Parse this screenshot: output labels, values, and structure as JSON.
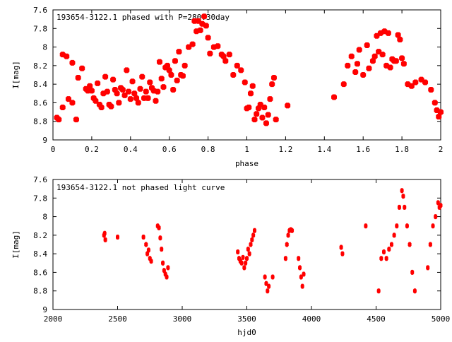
{
  "chart_data": [
    {
      "type": "scatter",
      "title": "193654-3122.1 phased with P=280.30day",
      "xlabel": "phase",
      "ylabel": "I[mag]",
      "xlim": [
        0,
        2
      ],
      "ylim": [
        9,
        7.6
      ],
      "y_inverted": true,
      "grid": false,
      "x_ticks": [
        "0",
        "0.2",
        "0.4",
        "0.6",
        "0.8",
        "1",
        "1.2",
        "1.4",
        "1.6",
        "1.8",
        "2"
      ],
      "y_ticks": [
        "7.6",
        "7.8",
        "8",
        "8.2",
        "8.4",
        "8.6",
        "8.8",
        "9"
      ],
      "marker_color": "#ff0000",
      "points": [
        [
          0.02,
          8.76
        ],
        [
          0.03,
          8.78
        ],
        [
          0.05,
          8.65
        ],
        [
          0.05,
          8.08
        ],
        [
          0.07,
          8.1
        ],
        [
          0.08,
          8.56
        ],
        [
          0.1,
          8.6
        ],
        [
          0.1,
          8.17
        ],
        [
          0.12,
          8.78
        ],
        [
          0.13,
          8.33
        ],
        [
          0.15,
          8.23
        ],
        [
          0.17,
          8.45
        ],
        [
          0.18,
          8.47
        ],
        [
          0.19,
          8.42
        ],
        [
          0.2,
          8.47
        ],
        [
          0.21,
          8.55
        ],
        [
          0.22,
          8.58
        ],
        [
          0.23,
          8.39
        ],
        [
          0.24,
          8.62
        ],
        [
          0.25,
          8.65
        ],
        [
          0.26,
          8.5
        ],
        [
          0.27,
          8.32
        ],
        [
          0.28,
          8.48
        ],
        [
          0.29,
          8.62
        ],
        [
          0.3,
          8.64
        ],
        [
          0.31,
          8.35
        ],
        [
          0.32,
          8.46
        ],
        [
          0.33,
          8.5
        ],
        [
          0.34,
          8.6
        ],
        [
          0.35,
          8.44
        ],
        [
          0.36,
          8.46
        ],
        [
          0.37,
          8.52
        ],
        [
          0.38,
          8.25
        ],
        [
          0.39,
          8.48
        ],
        [
          0.4,
          8.56
        ],
        [
          0.41,
          8.37
        ],
        [
          0.42,
          8.5
        ],
        [
          0.43,
          8.55
        ],
        [
          0.44,
          8.6
        ],
        [
          0.45,
          8.45
        ],
        [
          0.46,
          8.32
        ],
        [
          0.47,
          8.55
        ],
        [
          0.48,
          8.48
        ],
        [
          0.49,
          8.55
        ],
        [
          0.5,
          8.38
        ],
        [
          0.51,
          8.44
        ],
        [
          0.52,
          8.47
        ],
        [
          0.53,
          8.58
        ],
        [
          0.54,
          8.48
        ],
        [
          0.55,
          8.16
        ],
        [
          0.56,
          8.34
        ],
        [
          0.57,
          8.43
        ],
        [
          0.58,
          8.22
        ],
        [
          0.59,
          8.2
        ],
        [
          0.6,
          8.25
        ],
        [
          0.61,
          8.3
        ],
        [
          0.62,
          8.46
        ],
        [
          0.63,
          8.15
        ],
        [
          0.64,
          8.36
        ],
        [
          0.65,
          8.05
        ],
        [
          0.66,
          8.3
        ],
        [
          0.67,
          8.31
        ],
        [
          0.68,
          8.2
        ],
        [
          0.7,
          8.0
        ],
        [
          0.72,
          7.97
        ],
        [
          0.73,
          7.72
        ],
        [
          0.74,
          7.83
        ],
        [
          0.75,
          7.72
        ],
        [
          0.76,
          7.82
        ],
        [
          0.77,
          7.75
        ],
        [
          0.78,
          7.67
        ],
        [
          0.79,
          7.77
        ],
        [
          0.8,
          7.9
        ],
        [
          0.81,
          8.07
        ],
        [
          0.83,
          8.0
        ],
        [
          0.85,
          7.99
        ],
        [
          0.87,
          8.08
        ],
        [
          0.88,
          8.1
        ],
        [
          0.89,
          8.15
        ],
        [
          0.91,
          8.08
        ],
        [
          0.93,
          8.3
        ],
        [
          0.95,
          8.2
        ],
        [
          0.97,
          8.25
        ],
        [
          0.99,
          8.38
        ],
        [
          1.0,
          8.66
        ],
        [
          1.01,
          8.65
        ],
        [
          1.02,
          8.5
        ],
        [
          1.03,
          8.42
        ],
        [
          1.04,
          8.78
        ],
        [
          1.05,
          8.72
        ],
        [
          1.06,
          8.66
        ],
        [
          1.07,
          8.62
        ],
        [
          1.08,
          8.76
        ],
        [
          1.09,
          8.65
        ],
        [
          1.1,
          8.82
        ],
        [
          1.11,
          8.73
        ],
        [
          1.12,
          8.56
        ],
        [
          1.13,
          8.4
        ],
        [
          1.14,
          8.33
        ],
        [
          1.15,
          8.78
        ],
        [
          1.21,
          8.63
        ],
        [
          1.45,
          8.54
        ],
        [
          1.5,
          8.4
        ],
        [
          1.52,
          8.2
        ],
        [
          1.54,
          8.1
        ],
        [
          1.56,
          8.27
        ],
        [
          1.57,
          8.18
        ],
        [
          1.58,
          8.03
        ],
        [
          1.6,
          8.3
        ],
        [
          1.62,
          7.98
        ],
        [
          1.63,
          8.23
        ],
        [
          1.65,
          8.15
        ],
        [
          1.66,
          8.1
        ],
        [
          1.67,
          7.88
        ],
        [
          1.68,
          8.05
        ],
        [
          1.69,
          7.85
        ],
        [
          1.7,
          8.08
        ],
        [
          1.71,
          7.83
        ],
        [
          1.72,
          8.2
        ],
        [
          1.73,
          7.85
        ],
        [
          1.74,
          8.22
        ],
        [
          1.75,
          8.13
        ],
        [
          1.76,
          8.15
        ],
        [
          1.77,
          8.15
        ],
        [
          1.78,
          7.87
        ],
        [
          1.79,
          7.92
        ],
        [
          1.8,
          8.12
        ],
        [
          1.81,
          8.18
        ],
        [
          1.83,
          8.4
        ],
        [
          1.85,
          8.42
        ],
        [
          1.87,
          8.38
        ],
        [
          1.9,
          8.35
        ],
        [
          1.92,
          8.38
        ],
        [
          1.95,
          8.46
        ],
        [
          1.97,
          8.6
        ],
        [
          1.98,
          8.68
        ],
        [
          1.99,
          8.75
        ],
        [
          2.0,
          8.7
        ]
      ]
    },
    {
      "type": "scatter",
      "title": "193654-3122.1 not phased light curve",
      "xlabel": "hjd0",
      "ylabel": "I[mag]",
      "xlim": [
        2000,
        5000
      ],
      "ylim": [
        9,
        7.6
      ],
      "y_inverted": true,
      "grid": false,
      "x_ticks": [
        "2000",
        "2500",
        "3000",
        "3500",
        "4000",
        "4500",
        "5000"
      ],
      "y_ticks": [
        "7.6",
        "7.8",
        "8",
        "8.2",
        "8.4",
        "8.6",
        "8.8",
        "9"
      ],
      "marker_color": "#ff0000",
      "points": [
        [
          2395,
          8.2
        ],
        [
          2400,
          8.18
        ],
        [
          2405,
          8.25
        ],
        [
          2500,
          8.22
        ],
        [
          2700,
          8.22
        ],
        [
          2720,
          8.3
        ],
        [
          2730,
          8.4
        ],
        [
          2740,
          8.36
        ],
        [
          2750,
          8.45
        ],
        [
          2760,
          8.48
        ],
        [
          2810,
          8.1
        ],
        [
          2820,
          8.12
        ],
        [
          2830,
          8.23
        ],
        [
          2840,
          8.35
        ],
        [
          2850,
          8.5
        ],
        [
          2860,
          8.58
        ],
        [
          2870,
          8.62
        ],
        [
          2880,
          8.65
        ],
        [
          2890,
          8.55
        ],
        [
          3430,
          8.38
        ],
        [
          3440,
          8.45
        ],
        [
          3450,
          8.48
        ],
        [
          3460,
          8.5
        ],
        [
          3470,
          8.44
        ],
        [
          3480,
          8.55
        ],
        [
          3490,
          8.5
        ],
        [
          3500,
          8.45
        ],
        [
          3510,
          8.35
        ],
        [
          3520,
          8.4
        ],
        [
          3530,
          8.3
        ],
        [
          3540,
          8.25
        ],
        [
          3550,
          8.2
        ],
        [
          3560,
          8.15
        ],
        [
          3640,
          8.65
        ],
        [
          3650,
          8.72
        ],
        [
          3660,
          8.8
        ],
        [
          3670,
          8.75
        ],
        [
          3700,
          8.65
        ],
        [
          3800,
          8.45
        ],
        [
          3810,
          8.3
        ],
        [
          3820,
          8.2
        ],
        [
          3830,
          8.15
        ],
        [
          3840,
          8.14
        ],
        [
          3850,
          8.15
        ],
        [
          3900,
          8.45
        ],
        [
          3910,
          8.55
        ],
        [
          3920,
          8.65
        ],
        [
          3930,
          8.75
        ],
        [
          3940,
          8.62
        ],
        [
          4230,
          8.33
        ],
        [
          4240,
          8.4
        ],
        [
          4420,
          8.1
        ],
        [
          4520,
          8.8
        ],
        [
          4540,
          8.45
        ],
        [
          4560,
          8.38
        ],
        [
          4580,
          8.45
        ],
        [
          4600,
          8.35
        ],
        [
          4620,
          8.3
        ],
        [
          4640,
          8.2
        ],
        [
          4660,
          8.1
        ],
        [
          4680,
          7.9
        ],
        [
          4700,
          7.72
        ],
        [
          4710,
          7.78
        ],
        [
          4720,
          7.9
        ],
        [
          4740,
          8.1
        ],
        [
          4760,
          8.3
        ],
        [
          4780,
          8.6
        ],
        [
          4800,
          8.8
        ],
        [
          4900,
          8.55
        ],
        [
          4920,
          8.3
        ],
        [
          4940,
          8.1
        ],
        [
          4960,
          8.0
        ],
        [
          4980,
          7.85
        ],
        [
          4990,
          7.9
        ],
        [
          5000,
          7.88
        ]
      ]
    }
  ]
}
